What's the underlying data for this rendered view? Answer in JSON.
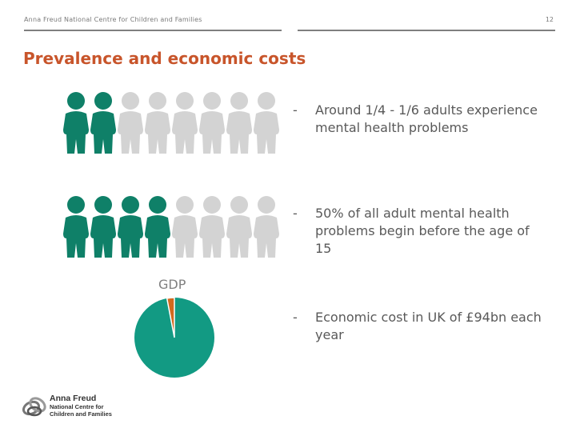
{
  "header": {
    "org": "Anna Freud National Centre for Children and Families",
    "page_number": "12"
  },
  "title": "Prevalence and economic costs",
  "colors": {
    "accent_title": "#c8552b",
    "highlight": "#0f8068",
    "muted": "#d3d3d3",
    "pie_main": "#129a83",
    "pie_slice": "#d2691e"
  },
  "people_rows": [
    {
      "total": 8,
      "highlighted": 2
    },
    {
      "total": 8,
      "highlighted": 4
    }
  ],
  "gdp": {
    "label": "GDP",
    "slice_fraction": 0.03
  },
  "bullets": [
    {
      "dash": "-",
      "text": "Around 1/4 - 1/6 adults experience mental health problems"
    },
    {
      "dash": "-",
      "text": "50% of all adult mental health problems begin before the age of 15"
    },
    {
      "dash": "-",
      "text": "Economic cost in UK of £94bn each year"
    }
  ],
  "logo": {
    "name": "Anna Freud",
    "line1": "National Centre for",
    "line2": "Children and Families"
  }
}
